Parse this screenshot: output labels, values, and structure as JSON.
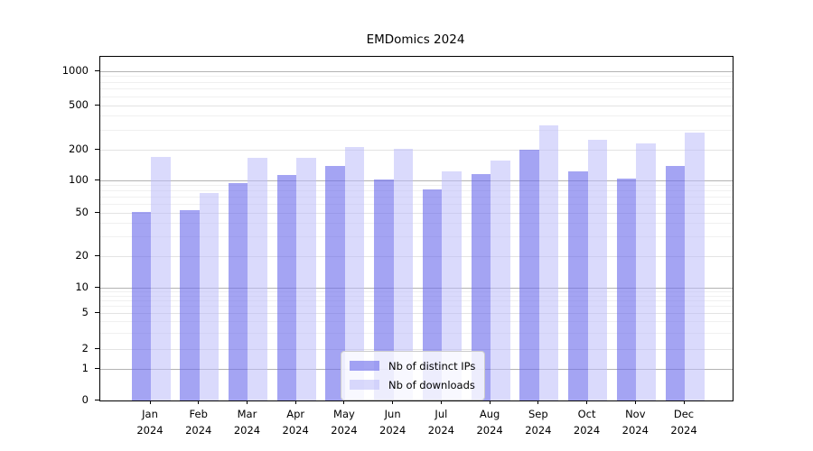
{
  "chart_data": {
    "type": "bar",
    "title": "EMDomics 2024",
    "categories": [
      "Jan",
      "Feb",
      "Mar",
      "Apr",
      "May",
      "Jun",
      "Jul",
      "Aug",
      "Sep",
      "Oct",
      "Nov",
      "Dec"
    ],
    "year_label": "2024",
    "series": [
      {
        "name": "Nb of distinct IPs",
        "color": "rgba(108,108,236,0.62)",
        "apparent_color": "#a6a6f1",
        "values": [
          51,
          53,
          95,
          113,
          138,
          102,
          83,
          116,
          201,
          123,
          105,
          140
        ]
      },
      {
        "name": "Nb of downloads",
        "color": "rgba(188,188,250,0.55)",
        "apparent_color": "#d9d9f8",
        "values": [
          170,
          77,
          168,
          165,
          212,
          205,
          122,
          156,
          330,
          248,
          228,
          288
        ]
      }
    ],
    "xlabel": "",
    "ylabel": "",
    "y_axis": {
      "scale": "log-like (symlog)",
      "tick_labels": [
        0,
        1,
        2,
        5,
        10,
        20,
        50,
        100,
        200,
        500,
        1000
      ],
      "major_grid_values": [
        1,
        10,
        100,
        1000
      ],
      "light_grid_values": [
        2,
        5,
        20,
        50,
        200,
        500
      ],
      "minor_grid_values": [
        3,
        4,
        6,
        7,
        8,
        9,
        30,
        40,
        60,
        70,
        80,
        90,
        300,
        400,
        600,
        700,
        800,
        900
      ],
      "ylim": [
        0,
        1300
      ]
    },
    "grid": "on",
    "legend_position": "lower center"
  },
  "colors": {
    "bar_distinct_ips": "#a6a6f1",
    "bar_downloads": "#d9d9f8",
    "axis": "#000000",
    "grid_major": "#b3b3b3",
    "grid_minor": "#f0f0f0",
    "background": "#ffffff"
  }
}
